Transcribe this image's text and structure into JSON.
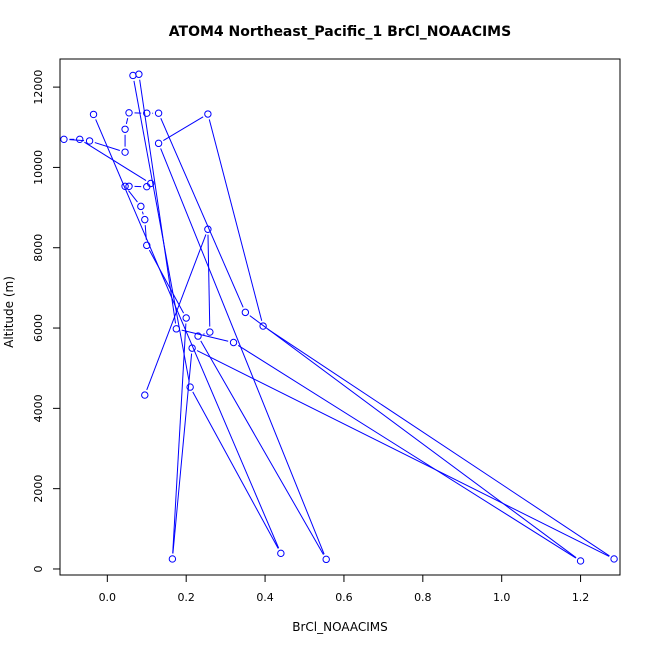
{
  "chart_data": {
    "type": "line",
    "title": "ATOM4 Northeast_Pacific_1 BrCl_NOAACIMS",
    "xlabel": "BrCl_NOAACIMS",
    "ylabel": "Altitude (m)",
    "xlim": [
      -0.12,
      1.3
    ],
    "ylim": [
      -150,
      12700
    ],
    "x_ticks": [
      0.0,
      0.2,
      0.4,
      0.6,
      0.8,
      1.0,
      1.2
    ],
    "x_tick_labels": [
      "0.0",
      "0.2",
      "0.4",
      "0.6",
      "0.8",
      "1.0",
      "1.2"
    ],
    "y_ticks": [
      0,
      2000,
      4000,
      6000,
      8000,
      10000,
      12000
    ],
    "y_tick_labels": [
      "0",
      "2000",
      "4000",
      "6000",
      "8000",
      "10000",
      "12000"
    ],
    "grid": false,
    "line_color": "#0000ff",
    "marker": "open-circle",
    "series": [
      {
        "points": [
          [
            0.095,
            4330
          ],
          [
            0.255,
            8460
          ],
          [
            0.26,
            5900
          ],
          [
            0.23,
            5800
          ],
          [
            0.555,
            240
          ],
          [
            0.13,
            10600
          ],
          [
            0.255,
            11330
          ],
          [
            0.395,
            6050
          ],
          [
            1.285,
            250
          ],
          [
            0.215,
            5500
          ],
          [
            0.165,
            250
          ],
          [
            0.2,
            6250
          ],
          [
            0.1,
            8060
          ],
          [
            0.095,
            8700
          ],
          [
            0.085,
            9030
          ],
          [
            0.045,
            9530
          ],
          [
            0.055,
            9530
          ],
          [
            0.1,
            9520
          ],
          [
            0.11,
            9600
          ],
          [
            -0.07,
            10700
          ],
          [
            -0.11,
            10700
          ],
          [
            -0.045,
            10660
          ],
          [
            0.045,
            10380
          ],
          [
            0.045,
            10950
          ],
          [
            0.055,
            11360
          ],
          [
            0.1,
            11350
          ],
          [
            0.13,
            11350
          ],
          [
            0.35,
            6390
          ],
          [
            1.2,
            200
          ],
          [
            0.32,
            5640
          ],
          [
            0.175,
            5980
          ],
          [
            0.08,
            12320
          ],
          [
            0.065,
            12290
          ],
          [
            0.21,
            4530
          ],
          [
            0.44,
            390
          ],
          [
            -0.035,
            11320
          ]
        ]
      }
    ]
  }
}
